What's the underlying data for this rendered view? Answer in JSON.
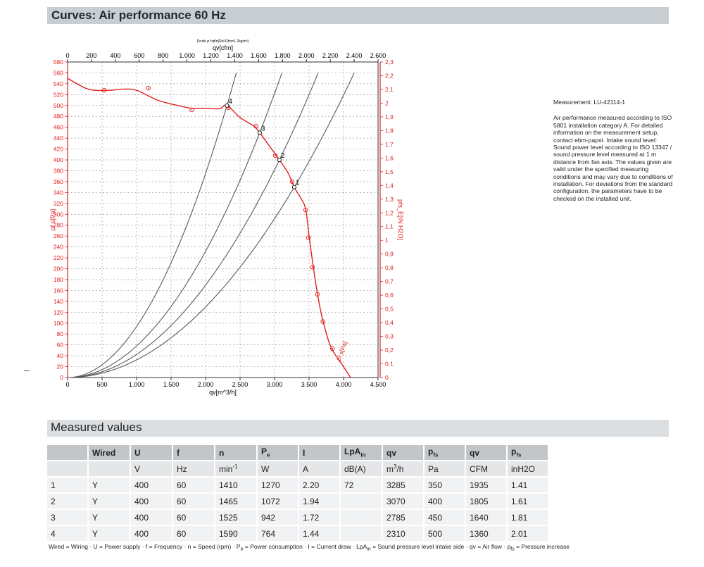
{
  "headers": {
    "curves": "Curves: Air performance 60 Hz",
    "measured": "Measured values"
  },
  "side": {
    "measurement": "Measurement: LU-42114-1",
    "description": "Air performance measured according to ISO 5801 installation category A. For detailed information on the measurement setup, contact ebm-papst. Intake sound level: Sound power level according to ISO 13347 / sound pressure level measured at 1 m distance from fan axis. The values given are valid under the specified measuring conditions and may vary due to conditions of installation. For deviations from the standard configuration, the parameters have to be checked on the installed unit."
  },
  "chart_data": {
    "type": "line",
    "top_caption": "Druck p f:qf\\n(Rel.Rho=1.2kg/m³)",
    "xlabel": "qv[m^3/h]",
    "xlabel_top": "qv[cfm]",
    "ylabel_left": "pf s[Pa]",
    "ylabel_right": "pfs_E[IN H2O]",
    "xlim": [
      0,
      4500
    ],
    "xlim_top": [
      0,
      2600
    ],
    "ylim": [
      0,
      580
    ],
    "ylim_right": [
      0,
      2.3
    ],
    "x_ticks": [
      "0",
      "500",
      "1.000",
      "1.500",
      "2.000",
      "2.500",
      "3.000",
      "3.500",
      "4.000",
      "4.500"
    ],
    "x_top_ticks": [
      "0",
      "200",
      "400",
      "600",
      "800",
      "1.000",
      "1.200",
      "1.400",
      "1.600",
      "1.800",
      "2.000",
      "2.200",
      "2.400",
      "2.600"
    ],
    "y_ticks": [
      "0",
      "20",
      "40",
      "60",
      "80",
      "100",
      "120",
      "140",
      "160",
      "180",
      "200",
      "220",
      "240",
      "260",
      "280",
      "300",
      "320",
      "340",
      "360",
      "380",
      "400",
      "420",
      "440",
      "460",
      "480",
      "500",
      "520",
      "540",
      "560",
      "580"
    ],
    "y_right_ticks": [
      "0",
      "0,1",
      "0,2",
      "0,3",
      "0,4",
      "0,5",
      "0,6",
      "0,7",
      "0,8",
      "0,9",
      "1",
      "1,1",
      "1,2",
      "1,3",
      "1,4",
      "1,5",
      "1,6",
      "1,7",
      "1,8",
      "1,9",
      "2",
      "2,1",
      "2,2",
      "2,3"
    ],
    "grid": true,
    "fan_curve": {
      "name": "pf s[Pa]",
      "color": "#e02020",
      "points": [
        [
          0,
          550
        ],
        [
          300,
          530
        ],
        [
          600,
          528
        ],
        [
          800,
          530
        ],
        [
          1000,
          528
        ],
        [
          1300,
          510
        ],
        [
          1600,
          500
        ],
        [
          1800,
          495
        ],
        [
          2000,
          495
        ],
        [
          2200,
          494
        ],
        [
          2310,
          500
        ],
        [
          2500,
          478
        ],
        [
          2700,
          462
        ],
        [
          2785,
          450
        ],
        [
          2900,
          430
        ],
        [
          3070,
          400
        ],
        [
          3200,
          375
        ],
        [
          3285,
          350
        ],
        [
          3380,
          330
        ],
        [
          3450,
          310
        ],
        [
          3500,
          260
        ],
        [
          3560,
          205
        ],
        [
          3620,
          155
        ],
        [
          3700,
          105
        ],
        [
          3820,
          55
        ],
        [
          4000,
          20
        ],
        [
          4100,
          0
        ]
      ],
      "markers": [
        [
          530,
          528
        ],
        [
          1170,
          532
        ],
        [
          1800,
          492
        ],
        [
          2330,
          496
        ],
        [
          2730,
          462
        ],
        [
          3010,
          408
        ],
        [
          3255,
          360
        ],
        [
          3450,
          308
        ],
        [
          3490,
          257
        ],
        [
          3550,
          203
        ],
        [
          3620,
          153
        ],
        [
          3700,
          103
        ],
        [
          3840,
          53
        ]
      ]
    },
    "system_curves": [
      {
        "label": "4",
        "op": [
          2310,
          500
        ],
        "end": [
          2530,
          560
        ]
      },
      {
        "label": "3",
        "op": [
          2785,
          450
        ],
        "end": [
          3100,
          560
        ]
      },
      {
        "label": "2",
        "op": [
          3070,
          400
        ],
        "end": [
          3630,
          560
        ]
      },
      {
        "label": "1",
        "op": [
          3285,
          350
        ],
        "end": [
          4160,
          560
        ]
      }
    ]
  },
  "table": {
    "header1": [
      "",
      "Wired",
      "U",
      "f",
      "n",
      "P_e",
      "I",
      "LpA_in",
      "qv",
      "p_fs",
      "qv",
      "p_fs"
    ],
    "header2": [
      "",
      "",
      "V",
      "Hz",
      "min-1",
      "W",
      "A",
      "dB(A)",
      "m3/h",
      "Pa",
      "CFM",
      "inH2O"
    ],
    "rows": [
      [
        "1",
        "Y",
        "400",
        "60",
        "1410",
        "1270",
        "2.20",
        "72",
        "3285",
        "350",
        "1935",
        "1.41"
      ],
      [
        "2",
        "Y",
        "400",
        "60",
        "1465",
        "1072",
        "1.94",
        "",
        "3070",
        "400",
        "1805",
        "1.61"
      ],
      [
        "3",
        "Y",
        "400",
        "60",
        "1525",
        "942",
        "1.72",
        "",
        "2785",
        "450",
        "1640",
        "1.81"
      ],
      [
        "4",
        "Y",
        "400",
        "60",
        "1590",
        "764",
        "1.44",
        "",
        "2310",
        "500",
        "1360",
        "2.01"
      ]
    ]
  },
  "footnote": "Wired = Wiring · U = Power supply · f = Frequency · n = Speed (rpm) · Pe = Power consumption · I = Current draw · LpAin = Sound pressure level intake side · qv = Air flow · pfs = Pressure increase"
}
